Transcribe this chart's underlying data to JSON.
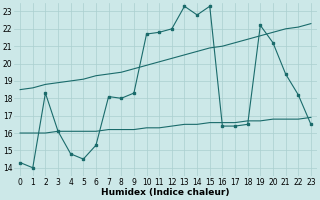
{
  "bg_color": "#cce8e8",
  "grid_color": "#aacfcf",
  "line_color": "#1a6b6b",
  "xlabel": "Humidex (Indice chaleur)",
  "xlim": [
    -0.5,
    23.5
  ],
  "ylim": [
    13.5,
    23.5
  ],
  "yticks": [
    14,
    15,
    16,
    17,
    18,
    19,
    20,
    21,
    22,
    23
  ],
  "xticks": [
    0,
    1,
    2,
    3,
    4,
    5,
    6,
    7,
    8,
    9,
    10,
    11,
    12,
    13,
    14,
    15,
    16,
    17,
    18,
    19,
    20,
    21,
    22,
    23
  ],
  "series1_x": [
    0,
    1,
    2,
    3,
    4,
    5,
    6,
    7,
    8,
    9,
    10,
    11,
    12,
    13,
    14,
    15,
    16,
    17,
    18,
    19,
    20,
    21,
    22,
    23
  ],
  "series1_y": [
    14.3,
    14.0,
    18.3,
    16.1,
    14.8,
    14.5,
    15.3,
    18.1,
    18.0,
    18.3,
    21.7,
    21.8,
    22.0,
    23.3,
    22.8,
    23.3,
    16.4,
    16.4,
    16.5,
    22.2,
    21.2,
    19.4,
    18.2,
    16.5
  ],
  "series2_x": [
    0,
    1,
    2,
    3,
    4,
    5,
    6,
    7,
    8,
    9,
    10,
    11,
    12,
    13,
    14,
    15,
    16,
    17,
    18,
    19,
    20,
    21,
    22,
    23
  ],
  "series2_y": [
    16.0,
    16.0,
    16.0,
    16.1,
    16.1,
    16.1,
    16.1,
    16.2,
    16.2,
    16.2,
    16.3,
    16.3,
    16.4,
    16.5,
    16.5,
    16.6,
    16.6,
    16.6,
    16.7,
    16.7,
    16.8,
    16.8,
    16.8,
    16.9
  ],
  "series3_x": [
    0,
    1,
    2,
    3,
    4,
    5,
    6,
    7,
    8,
    9,
    10,
    11,
    12,
    13,
    14,
    15,
    16,
    17,
    18,
    19,
    20,
    21,
    22,
    23
  ],
  "series3_y": [
    18.5,
    18.6,
    18.8,
    18.9,
    19.0,
    19.1,
    19.3,
    19.4,
    19.5,
    19.7,
    19.9,
    20.1,
    20.3,
    20.5,
    20.7,
    20.9,
    21.0,
    21.2,
    21.4,
    21.6,
    21.8,
    22.0,
    22.1,
    22.3
  ]
}
